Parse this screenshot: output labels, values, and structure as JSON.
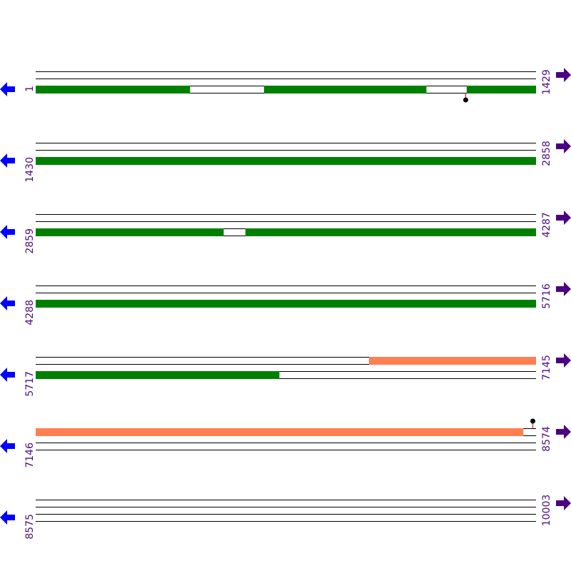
{
  "colors": {
    "line": "#000000",
    "green": "#008000",
    "orange": "#ff7f50",
    "marker_stem": "#ff0000",
    "marker_dot": "#000000",
    "left_arrow": "#0000ff",
    "right_arrow": "#4b0082",
    "label": "#4b0f7d"
  },
  "icons": {
    "left": "arrow-left-icon",
    "right": "arrow-right-icon"
  },
  "rows": [
    {
      "start": "1",
      "end": "1429",
      "features": [
        {
          "track": 2,
          "from": 1,
          "to": 441,
          "color": "green"
        },
        {
          "track": 2,
          "from": 653,
          "to": 1116,
          "color": "green"
        },
        {
          "track": 2,
          "from": 1232,
          "to": 1429,
          "color": "green"
        }
      ],
      "markers": [
        {
          "pos": 1228,
          "dir": "down"
        }
      ]
    },
    {
      "start": "1430",
      "end": "2858",
      "features": [
        {
          "track": 2,
          "from": 1430,
          "to": 2858,
          "color": "green"
        }
      ],
      "markers": []
    },
    {
      "start": "2859",
      "end": "4287",
      "features": [
        {
          "track": 2,
          "from": 2859,
          "to": 3395,
          "color": "green"
        },
        {
          "track": 2,
          "from": 3458,
          "to": 4287,
          "color": "green"
        }
      ],
      "markers": []
    },
    {
      "start": "4288",
      "end": "5716",
      "features": [
        {
          "track": 2,
          "from": 4288,
          "to": 5716,
          "color": "green"
        }
      ],
      "markers": []
    },
    {
      "start": "5717",
      "end": "7145",
      "features": [
        {
          "track": 0,
          "from": 6669,
          "to": 7145,
          "color": "orange"
        },
        {
          "track": 2,
          "from": 5717,
          "to": 6412,
          "color": "green"
        }
      ],
      "markers": []
    },
    {
      "start": "7146",
      "end": "8574",
      "features": [
        {
          "track": 0,
          "from": 7146,
          "to": 8538,
          "color": "orange"
        }
      ],
      "markers": [
        {
          "pos": 8565,
          "dir": "up"
        }
      ]
    },
    {
      "start": "8575",
      "end": "10003",
      "features": [],
      "markers": []
    }
  ]
}
